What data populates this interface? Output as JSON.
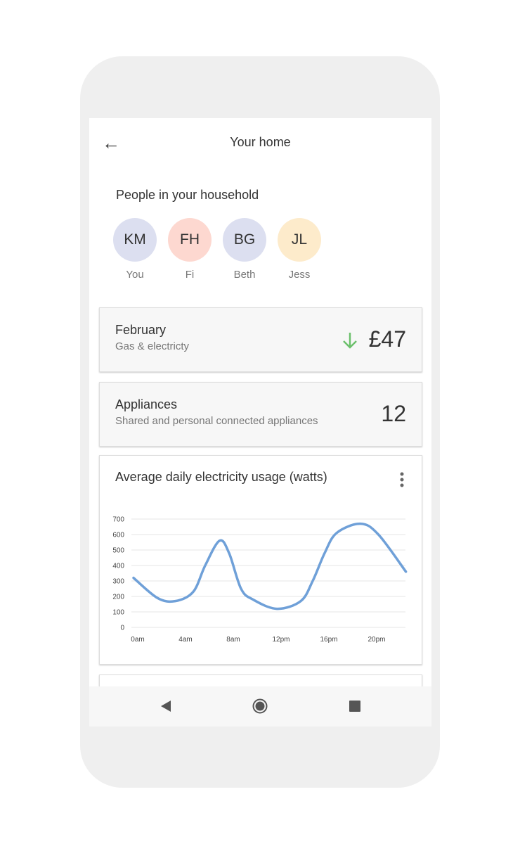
{
  "header": {
    "title": "Your home",
    "back_icon": "arrow-left-icon"
  },
  "household": {
    "title": "People in your household",
    "people": [
      {
        "initials": "KM",
        "name": "You",
        "color": "#dcdff0"
      },
      {
        "initials": "FH",
        "name": "Fi",
        "color": "#fdd8d0"
      },
      {
        "initials": "BG",
        "name": "Beth",
        "color": "#dcdff0"
      },
      {
        "initials": "JL",
        "name": "Jess",
        "color": "#fdebcb"
      }
    ]
  },
  "billing": {
    "title": "February",
    "subtitle": "Gas & electricty",
    "amount": "£47",
    "trend": "down",
    "trend_color": "#6cc06c"
  },
  "appliances": {
    "title": "Appliances",
    "subtitle": "Shared and personal connected appliances",
    "count": "12"
  },
  "usage": {
    "title": "Average daily electricity usage (watts)",
    "menu_icon": "more-vert-icon"
  },
  "chart_data": {
    "type": "line",
    "title": "Average daily electricity usage (watts)",
    "ylim": [
      0,
      700
    ],
    "yticks": [
      "0",
      "100",
      "200",
      "300",
      "400",
      "500",
      "600",
      "700"
    ],
    "xticks": [
      {
        "h": 0,
        "label": "0am"
      },
      {
        "h": 4,
        "label": "4am"
      },
      {
        "h": 8,
        "label": "8am"
      },
      {
        "h": 12,
        "label": "12pm"
      },
      {
        "h": 16,
        "label": "16pm"
      },
      {
        "h": 20,
        "label": "20pm"
      }
    ],
    "color": "#6fa0d8",
    "grid": true,
    "points": [
      [
        0,
        320
      ],
      [
        2,
        190
      ],
      [
        3.5,
        170
      ],
      [
        5,
        230
      ],
      [
        6,
        400
      ],
      [
        7.2,
        560
      ],
      [
        8,
        480
      ],
      [
        9,
        250
      ],
      [
        10,
        180
      ],
      [
        12,
        120
      ],
      [
        14,
        170
      ],
      [
        15,
        300
      ],
      [
        16,
        480
      ],
      [
        17,
        610
      ],
      [
        19,
        670
      ],
      [
        20.5,
        600
      ],
      [
        22.8,
        360
      ]
    ]
  },
  "navbar": {
    "back": "nav-back-icon",
    "home": "nav-home-icon",
    "recents": "nav-recents-icon"
  }
}
